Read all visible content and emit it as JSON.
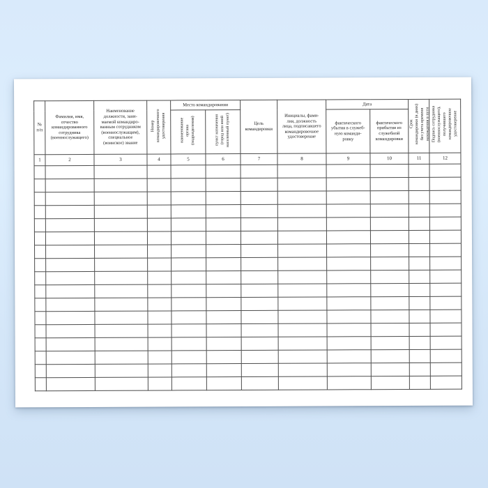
{
  "page": {
    "background_color": "#d9eafb",
    "paper_color": "#ffffff",
    "border_color": "#4b4b4b",
    "text_color": "#1b1b1b"
  },
  "table": {
    "group_headers": {
      "place": "Место командирования",
      "date": "Дата"
    },
    "columns": [
      {
        "num": "1",
        "label": "№\nп/п",
        "vertical": false
      },
      {
        "num": "2",
        "label": "Фамилия, имя,\nотчество\nкомандированного\nсотрудника\n(военнослужащего)",
        "vertical": false
      },
      {
        "num": "3",
        "label": "Наименование\nдолжности, зани-\nмаемой командиро-\nванным сотрудником\n(военнослужащим),\nспециальное\n(воинское) звание",
        "vertical": false
      },
      {
        "num": "4",
        "label": "Номер\nкомандировочного\nудостоверения",
        "vertical": true
      },
      {
        "num": "5",
        "label": "наименование\nоргана\n(подразделения)",
        "vertical": true,
        "group": "place"
      },
      {
        "num": "6",
        "label": "пункт назначения\n(город или иной\nнаселенный пункт)",
        "vertical": true,
        "group": "place"
      },
      {
        "num": "7",
        "label": "Цель\nкомандировки",
        "vertical": false
      },
      {
        "num": "8",
        "label": "Инициалы, фами-\nлия, должность\nлица, подписавшего\nкомандировочное\nудостоверение",
        "vertical": false
      },
      {
        "num": "9",
        "label": "фактического\nубытия в служеб-\nную команди-\nровку",
        "vertical": false,
        "group": "date"
      },
      {
        "num": "10",
        "label": "фактического\nприбытия из\nслужебной\nкомандировки",
        "vertical": false,
        "group": "date"
      },
      {
        "num": "11",
        "label": "Срок\nкомандировки (в днях)\nбез учета времени\nнахождения в пути",
        "vertical": true
      },
      {
        "num": "12",
        "label": "Подпись сотрудника\n(военнослужащего),\nполучившего\nкомандировочное\nудостоверение",
        "vertical": true
      }
    ],
    "empty_row_count": 17
  }
}
